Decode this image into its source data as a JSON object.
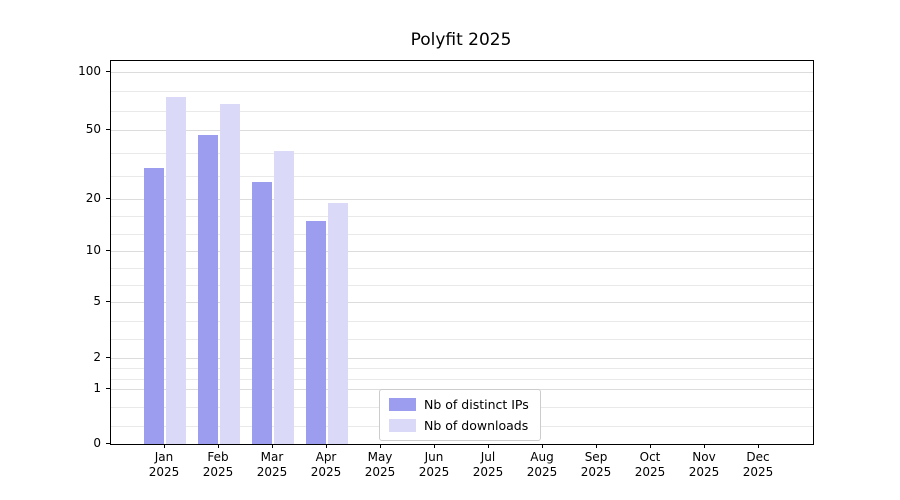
{
  "chart_data": {
    "type": "bar",
    "title": "Polyfit 2025",
    "categories": [
      "Jan",
      "Feb",
      "Mar",
      "Apr",
      "May",
      "Jun",
      "Jul",
      "Aug",
      "Sep",
      "Oct",
      "Nov",
      "Dec"
    ],
    "category_year": "2025",
    "series": [
      {
        "name": "Nb of distinct IPs",
        "color": "#9d9df0",
        "values": [
          30,
          47,
          25,
          15,
          0,
          0,
          0,
          0,
          0,
          0,
          0,
          0
        ]
      },
      {
        "name": "Nb of downloads",
        "color": "#dadaf8",
        "values": [
          74,
          68,
          38,
          19,
          0,
          0,
          0,
          0,
          0,
          0,
          0,
          0
        ]
      }
    ],
    "y_ticks": [
      0,
      1,
      2,
      5,
      10,
      20,
      50,
      100
    ],
    "yscale": "symlog",
    "ylim": [
      0,
      100
    ],
    "grid": "horizontal",
    "legend_position": "lower-center-inside",
    "grid_color": "#dcdcdc"
  }
}
